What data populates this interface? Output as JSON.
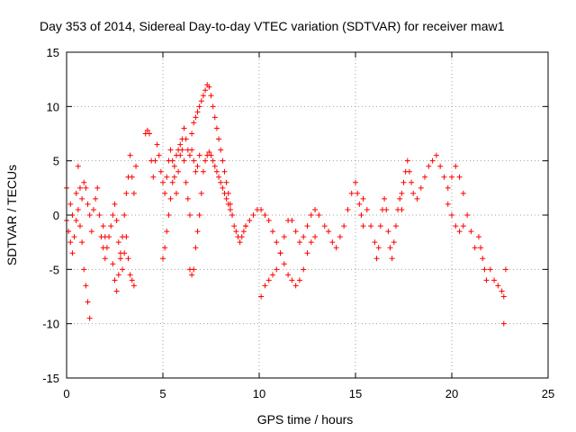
{
  "chart_data": {
    "type": "scatter",
    "title": "Day 353 of 2014, Sidereal Day-to-day VTEC variation (SDTVAR) for receiver maw1",
    "xlabel": "GPS time / hours",
    "ylabel": "SDTVAR / TECUs",
    "xlim": [
      0,
      25
    ],
    "ylim": [
      -15,
      15
    ],
    "xticks": [
      0,
      5,
      10,
      15,
      20,
      25
    ],
    "yticks": [
      -15,
      -10,
      -5,
      0,
      5,
      10,
      15
    ],
    "grid": true,
    "marker": "+",
    "series_color": "#ff0000",
    "series": [
      {
        "name": "segment-1",
        "points": [
          [
            0.0,
            -0.5
          ],
          [
            0.1,
            -1.5
          ],
          [
            0.2,
            -2.5
          ],
          [
            0.3,
            -3.5
          ],
          [
            0.4,
            -2.0
          ],
          [
            0.5,
            -0.5
          ],
          [
            0.6,
            0.5
          ],
          [
            0.7,
            -1.0
          ],
          [
            0.8,
            -2.5
          ],
          [
            0.9,
            -5.0
          ],
          [
            1.0,
            -6.5
          ],
          [
            1.1,
            -8.0
          ],
          [
            1.2,
            -9.5
          ]
        ]
      },
      {
        "name": "segment-2",
        "points": [
          [
            0.0,
            2.5
          ],
          [
            0.2,
            1.0
          ],
          [
            0.3,
            0.0
          ],
          [
            0.5,
            2.0
          ],
          [
            0.6,
            4.5
          ],
          [
            0.7,
            2.5
          ],
          [
            0.8,
            1.5
          ],
          [
            0.9,
            3.0
          ],
          [
            1.0,
            2.5
          ],
          [
            1.1,
            1.0
          ],
          [
            1.2,
            0.0
          ],
          [
            1.3,
            -1.5
          ],
          [
            1.4,
            0.5
          ],
          [
            1.5,
            1.5
          ],
          [
            1.6,
            2.5
          ],
          [
            1.7,
            0.0
          ],
          [
            1.8,
            -2.0
          ],
          [
            1.9,
            -3.0
          ],
          [
            2.0,
            -4.0
          ]
        ]
      },
      {
        "name": "segment-3",
        "points": [
          [
            1.9,
            -1.0
          ],
          [
            2.0,
            -2.0
          ],
          [
            2.1,
            -3.0
          ],
          [
            2.2,
            -2.0
          ],
          [
            2.3,
            -1.0
          ],
          [
            2.4,
            0.0
          ],
          [
            2.5,
            1.0
          ],
          [
            2.6,
            -0.5
          ],
          [
            2.7,
            -2.5
          ],
          [
            2.8,
            -4.0
          ],
          [
            2.9,
            -5.0
          ],
          [
            3.0,
            -3.5
          ],
          [
            3.1,
            -2.0
          ],
          [
            3.2,
            -4.0
          ],
          [
            3.3,
            -5.5
          ],
          [
            3.4,
            -6.0
          ],
          [
            3.5,
            -6.5
          ]
        ]
      },
      {
        "name": "segment-4",
        "points": [
          [
            2.4,
            -4.5
          ],
          [
            2.5,
            -6.0
          ],
          [
            2.6,
            -7.0
          ],
          [
            2.7,
            -5.5
          ],
          [
            2.8,
            -3.5
          ],
          [
            2.9,
            -2.0
          ],
          [
            3.0,
            0.0
          ],
          [
            3.1,
            2.0
          ],
          [
            3.2,
            3.5
          ],
          [
            3.3,
            5.5
          ],
          [
            3.4,
            3.5
          ],
          [
            3.5,
            2.0
          ],
          [
            3.6,
            4.5
          ]
        ]
      },
      {
        "name": "segment-5",
        "points": [
          [
            4.1,
            7.5
          ],
          [
            4.2,
            7.8
          ],
          [
            4.3,
            7.5
          ],
          [
            4.4,
            5.0
          ],
          [
            4.5,
            3.5
          ],
          [
            4.6,
            5.0
          ],
          [
            4.7,
            6.5
          ],
          [
            4.8,
            5.5
          ],
          [
            4.9,
            4.0
          ],
          [
            5.0,
            3.0
          ],
          [
            5.1,
            2.0
          ],
          [
            5.2,
            3.5
          ],
          [
            5.3,
            5.0
          ],
          [
            5.4,
            6.0
          ],
          [
            5.5,
            5.0
          ],
          [
            5.6,
            3.5
          ],
          [
            5.7,
            2.0
          ],
          [
            5.8,
            4.0
          ],
          [
            5.9,
            5.5
          ],
          [
            6.0,
            6.0
          ],
          [
            6.1,
            5.0
          ],
          [
            6.2,
            3.0
          ],
          [
            6.3,
            1.5
          ],
          [
            6.4,
            0.0
          ]
        ]
      },
      {
        "name": "segment-6",
        "points": [
          [
            5.0,
            -4.0
          ],
          [
            5.1,
            -3.0
          ],
          [
            5.2,
            -1.5
          ],
          [
            5.3,
            0.0
          ],
          [
            5.4,
            1.5
          ],
          [
            5.5,
            3.0
          ],
          [
            5.6,
            4.5
          ],
          [
            5.7,
            5.5
          ],
          [
            5.8,
            6.0
          ],
          [
            5.9,
            6.5
          ],
          [
            6.0,
            7.0
          ],
          [
            6.1,
            8.0
          ],
          [
            6.2,
            7.0
          ],
          [
            6.3,
            6.0
          ],
          [
            6.4,
            5.5
          ],
          [
            6.5,
            6.0
          ],
          [
            6.6,
            5.0
          ],
          [
            6.7,
            4.0
          ],
          [
            6.8,
            4.5
          ],
          [
            6.9,
            5.5
          ]
        ]
      },
      {
        "name": "segment-7",
        "points": [
          [
            6.5,
            7.5
          ],
          [
            6.6,
            8.5
          ],
          [
            6.7,
            9.0
          ],
          [
            6.8,
            9.5
          ],
          [
            6.9,
            10.0
          ],
          [
            7.0,
            10.5
          ],
          [
            7.1,
            11.0
          ],
          [
            7.2,
            11.5
          ],
          [
            7.3,
            12.0
          ],
          [
            7.4,
            11.8
          ],
          [
            7.5,
            11.0
          ],
          [
            7.6,
            10.0
          ],
          [
            7.7,
            9.0
          ],
          [
            7.8,
            8.0
          ],
          [
            7.9,
            7.0
          ],
          [
            8.0,
            6.0
          ],
          [
            8.1,
            5.0
          ],
          [
            8.2,
            4.0
          ],
          [
            8.3,
            3.0
          ],
          [
            8.4,
            2.0
          ],
          [
            8.5,
            1.0
          ],
          [
            8.6,
            0.0
          ],
          [
            8.7,
            -1.0
          ],
          [
            8.8,
            -1.5
          ],
          [
            8.9,
            -2.0
          ],
          [
            9.0,
            -2.5
          ],
          [
            9.1,
            -2.0
          ],
          [
            9.2,
            -1.5
          ],
          [
            9.3,
            -1.0
          ]
        ]
      },
      {
        "name": "segment-8",
        "points": [
          [
            6.4,
            -5.0
          ],
          [
            6.5,
            -5.5
          ],
          [
            6.6,
            -5.0
          ],
          [
            6.7,
            -3.0
          ],
          [
            6.8,
            -1.5
          ],
          [
            6.9,
            0.0
          ],
          [
            7.0,
            2.0
          ],
          [
            7.1,
            4.0
          ],
          [
            7.2,
            5.0
          ],
          [
            7.3,
            5.5
          ],
          [
            7.4,
            5.8
          ],
          [
            7.5,
            5.5
          ],
          [
            7.6,
            5.0
          ],
          [
            7.7,
            4.5
          ],
          [
            7.8,
            4.0
          ],
          [
            7.9,
            3.5
          ],
          [
            8.0,
            3.0
          ],
          [
            8.1,
            2.5
          ],
          [
            8.2,
            2.0
          ],
          [
            8.3,
            1.5
          ],
          [
            8.4,
            1.0
          ],
          [
            8.5,
            0.5
          ],
          [
            8.6,
            0.0
          ]
        ]
      },
      {
        "name": "segment-9",
        "points": [
          [
            9.3,
            -1.0
          ],
          [
            9.5,
            -0.5
          ],
          [
            9.7,
            0.0
          ],
          [
            9.9,
            0.5
          ],
          [
            10.1,
            0.5
          ],
          [
            10.3,
            0.0
          ],
          [
            10.5,
            -0.5
          ],
          [
            10.7,
            -1.5
          ],
          [
            10.9,
            -2.5
          ],
          [
            11.1,
            -3.5
          ],
          [
            11.3,
            -4.5
          ],
          [
            11.5,
            -5.5
          ],
          [
            11.7,
            -6.0
          ],
          [
            11.9,
            -6.5
          ],
          [
            12.1,
            -6.0
          ],
          [
            12.3,
            -5.0
          ],
          [
            12.5,
            -3.5
          ],
          [
            12.7,
            -2.5
          ],
          [
            12.9,
            -2.0
          ]
        ]
      },
      {
        "name": "segment-10",
        "points": [
          [
            10.1,
            -7.5
          ],
          [
            10.3,
            -6.5
          ],
          [
            10.5,
            -6.0
          ],
          [
            10.7,
            -5.5
          ],
          [
            10.9,
            -5.0
          ],
          [
            11.1,
            -3.5
          ],
          [
            11.3,
            -2.0
          ],
          [
            11.5,
            -0.5
          ],
          [
            11.7,
            -0.5
          ],
          [
            11.9,
            -1.5
          ],
          [
            12.1,
            -2.5
          ],
          [
            12.3,
            -2.0
          ],
          [
            12.5,
            -1.0
          ],
          [
            12.7,
            0.0
          ],
          [
            12.9,
            0.5
          ],
          [
            13.1,
            0.0
          ]
        ]
      },
      {
        "name": "segment-11",
        "points": [
          [
            13.4,
            -1.0
          ],
          [
            13.6,
            -1.5
          ],
          [
            13.8,
            -2.5
          ],
          [
            14.0,
            -3.0
          ],
          [
            14.2,
            -2.0
          ],
          [
            14.4,
            -1.0
          ],
          [
            14.6,
            0.5
          ],
          [
            14.8,
            2.0
          ],
          [
            15.0,
            3.0
          ],
          [
            15.1,
            2.0
          ],
          [
            15.2,
            1.0
          ],
          [
            15.3,
            0.0
          ],
          [
            15.4,
            -1.0
          ]
        ]
      },
      {
        "name": "segment-12",
        "points": [
          [
            15.4,
            1.5
          ],
          [
            15.6,
            0.5
          ],
          [
            15.8,
            -1.0
          ],
          [
            16.0,
            -2.5
          ],
          [
            16.1,
            -4.0
          ],
          [
            16.2,
            -3.0
          ],
          [
            16.3,
            -1.0
          ],
          [
            16.4,
            0.5
          ],
          [
            16.5,
            1.5
          ],
          [
            16.6,
            0.5
          ],
          [
            16.7,
            -1.5
          ],
          [
            16.8,
            -3.0
          ],
          [
            16.9,
            -4.0
          ],
          [
            17.0,
            -2.5
          ],
          [
            17.1,
            -1.0
          ],
          [
            17.2,
            0.5
          ],
          [
            17.3,
            1.5
          ],
          [
            17.4,
            0.5
          ]
        ]
      },
      {
        "name": "segment-13",
        "points": [
          [
            17.4,
            2.0
          ],
          [
            17.5,
            3.0
          ],
          [
            17.6,
            4.0
          ],
          [
            17.7,
            5.0
          ],
          [
            17.8,
            4.0
          ],
          [
            17.9,
            3.0
          ],
          [
            18.0,
            2.0
          ],
          [
            18.2,
            1.5
          ],
          [
            18.4,
            2.5
          ],
          [
            18.6,
            3.5
          ],
          [
            18.8,
            4.5
          ],
          [
            19.0,
            5.0
          ],
          [
            19.2,
            5.5
          ],
          [
            19.4,
            4.5
          ],
          [
            19.6,
            3.5
          ],
          [
            19.8,
            2.5
          ],
          [
            20.0,
            3.5
          ],
          [
            20.2,
            4.5
          ],
          [
            20.4,
            3.5
          ],
          [
            20.6,
            2.0
          ],
          [
            20.8,
            0.0
          ],
          [
            21.0,
            -1.5
          ],
          [
            21.2,
            -3.0
          ]
        ]
      },
      {
        "name": "segment-14",
        "points": [
          [
            19.8,
            1.0
          ],
          [
            20.0,
            0.0
          ],
          [
            20.2,
            -1.0
          ],
          [
            20.4,
            -1.5
          ],
          [
            20.6,
            -1.0
          ]
        ]
      },
      {
        "name": "segment-15",
        "points": [
          [
            21.4,
            -2.0
          ],
          [
            21.5,
            -3.0
          ],
          [
            21.6,
            -4.0
          ],
          [
            21.7,
            -5.0
          ],
          [
            21.8,
            -6.0
          ],
          [
            22.0,
            -5.0
          ],
          [
            22.2,
            -6.0
          ],
          [
            22.4,
            -6.5
          ],
          [
            22.6,
            -7.0
          ],
          [
            22.7,
            -7.5
          ],
          [
            22.8,
            -5.0
          ],
          [
            22.7,
            -10.0
          ]
        ]
      }
    ]
  }
}
